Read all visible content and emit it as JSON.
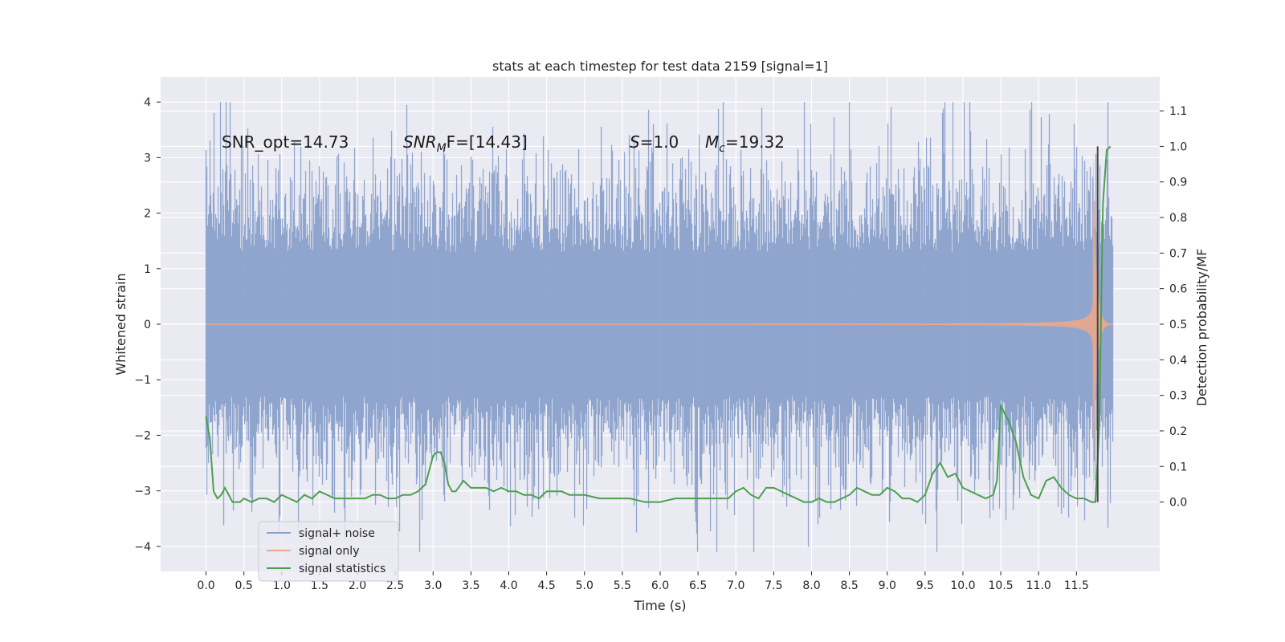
{
  "chart_data": {
    "type": "line",
    "title": "stats at each timestep for test data 2159 [signal=1]",
    "xlabel": "Time (s)",
    "ylabel": "Whitened strain",
    "y2label": "Detection probability/MF",
    "xlim": [
      -0.6,
      12.6
    ],
    "ylim": [
      -4.45,
      4.45
    ],
    "y2lim": [
      -0.195,
      1.195
    ],
    "x_ticks": [
      0.0,
      0.5,
      1.0,
      1.5,
      2.0,
      2.5,
      3.0,
      3.5,
      4.0,
      4.5,
      5.0,
      5.5,
      6.0,
      6.5,
      7.0,
      7.5,
      8.0,
      8.5,
      9.0,
      9.5,
      10.0,
      10.5,
      11.0,
      11.5
    ],
    "x_tick_labels": [
      "0.0",
      "0.5",
      "1.0",
      "1.5",
      "2.0",
      "2.5",
      "3.0",
      "3.5",
      "4.0",
      "4.5",
      "5.0",
      "5.5",
      "6.0",
      "6.5",
      "7.0",
      "7.5",
      "8.0",
      "8.5",
      "9.0",
      "9.5",
      "10.0",
      "10.5",
      "11.0",
      "11.5"
    ],
    "y_ticks": [
      4,
      3,
      2,
      1,
      0,
      -1,
      -2,
      -3,
      -4
    ],
    "y_tick_labels": [
      "4",
      "3",
      "2",
      "1",
      "0",
      "−1",
      "−2",
      "−3",
      "−4"
    ],
    "y2_ticks": [
      1.1,
      1.0,
      0.9,
      0.8,
      0.7,
      0.6,
      0.5,
      0.4,
      0.3,
      0.2,
      0.1,
      0.0
    ],
    "y2_tick_labels": [
      "1.1",
      "1.0",
      "0.9",
      "0.8",
      "0.7",
      "0.6",
      "0.5",
      "0.4",
      "0.3",
      "0.2",
      "0.1",
      "0.0"
    ],
    "grid": true,
    "legend_position": "lower-left",
    "annotations": {
      "snr_opt": "SNR_opt=14.73",
      "snr_mf_main": "SNR",
      "snr_mf_sub": "M",
      "snr_mf_rest": "F=[14.43]",
      "s_label": "S",
      "s_value": "=1.0",
      "mc_main": "M",
      "mc_sub": "c",
      "mc_value": "=19.32"
    },
    "series": [
      {
        "name": "signal+ noise",
        "color": "#8da2cc",
        "axis": "left",
        "description_range": [
          0.0,
          11.99
        ],
        "envelope": {
          "typical_peak": 2.5,
          "max": 4.0,
          "min": -4.1
        }
      },
      {
        "name": "signal only",
        "color": "#e8a88c",
        "axis": "left",
        "chirp": {
          "start": 0.0,
          "merger": 11.72,
          "end": 11.99,
          "peak_amplitude": 3.1
        }
      },
      {
        "name": "signal statistics",
        "color": "#4c9f50",
        "axis": "right",
        "x": [
          0.0,
          0.05,
          0.1,
          0.15,
          0.2,
          0.25,
          0.3,
          0.35,
          0.4,
          0.45,
          0.5,
          0.6,
          0.7,
          0.8,
          0.9,
          1.0,
          1.1,
          1.2,
          1.3,
          1.4,
          1.5,
          1.6,
          1.7,
          1.8,
          1.9,
          2.0,
          2.1,
          2.2,
          2.3,
          2.4,
          2.5,
          2.6,
          2.7,
          2.8,
          2.9,
          3.0,
          3.05,
          3.1,
          3.15,
          3.2,
          3.25,
          3.3,
          3.4,
          3.5,
          3.6,
          3.7,
          3.8,
          3.9,
          4.0,
          4.1,
          4.2,
          4.3,
          4.4,
          4.5,
          4.6,
          4.7,
          4.8,
          4.9,
          5.0,
          5.2,
          5.4,
          5.6,
          5.8,
          6.0,
          6.2,
          6.4,
          6.6,
          6.8,
          6.9,
          7.0,
          7.1,
          7.2,
          7.3,
          7.4,
          7.5,
          7.6,
          7.7,
          7.8,
          7.9,
          8.0,
          8.1,
          8.2,
          8.3,
          8.4,
          8.5,
          8.6,
          8.7,
          8.8,
          8.9,
          9.0,
          9.1,
          9.2,
          9.3,
          9.4,
          9.5,
          9.6,
          9.7,
          9.8,
          9.9,
          10.0,
          10.1,
          10.2,
          10.3,
          10.4,
          10.45,
          10.5,
          10.6,
          10.7,
          10.8,
          10.9,
          11.0,
          11.1,
          11.2,
          11.3,
          11.4,
          11.5,
          11.6,
          11.7,
          11.75,
          11.8,
          11.85,
          11.9,
          11.95
        ],
        "y": [
          0.24,
          0.18,
          0.03,
          0.01,
          0.02,
          0.04,
          0.02,
          0.0,
          0.0,
          0.0,
          0.01,
          0.0,
          0.01,
          0.01,
          0.0,
          0.02,
          0.01,
          0.0,
          0.02,
          0.01,
          0.03,
          0.02,
          0.01,
          0.01,
          0.01,
          0.01,
          0.01,
          0.02,
          0.02,
          0.01,
          0.01,
          0.02,
          0.02,
          0.03,
          0.05,
          0.13,
          0.14,
          0.14,
          0.11,
          0.05,
          0.03,
          0.03,
          0.06,
          0.04,
          0.04,
          0.04,
          0.03,
          0.04,
          0.03,
          0.03,
          0.02,
          0.02,
          0.01,
          0.03,
          0.03,
          0.03,
          0.02,
          0.02,
          0.02,
          0.01,
          0.01,
          0.01,
          0.0,
          0.0,
          0.01,
          0.01,
          0.01,
          0.01,
          0.01,
          0.03,
          0.04,
          0.02,
          0.01,
          0.04,
          0.04,
          0.03,
          0.02,
          0.01,
          0.0,
          0.0,
          0.01,
          0.0,
          0.0,
          0.01,
          0.02,
          0.04,
          0.03,
          0.02,
          0.02,
          0.04,
          0.03,
          0.01,
          0.01,
          0.0,
          0.02,
          0.08,
          0.11,
          0.07,
          0.08,
          0.04,
          0.03,
          0.02,
          0.01,
          0.02,
          0.06,
          0.27,
          0.23,
          0.17,
          0.07,
          0.02,
          0.01,
          0.06,
          0.07,
          0.04,
          0.02,
          0.01,
          0.01,
          0.0,
          0.0,
          0.2,
          0.84,
          0.99,
          1.0
        ]
      }
    ],
    "vline": {
      "x": 11.78,
      "color": "#444444"
    }
  }
}
